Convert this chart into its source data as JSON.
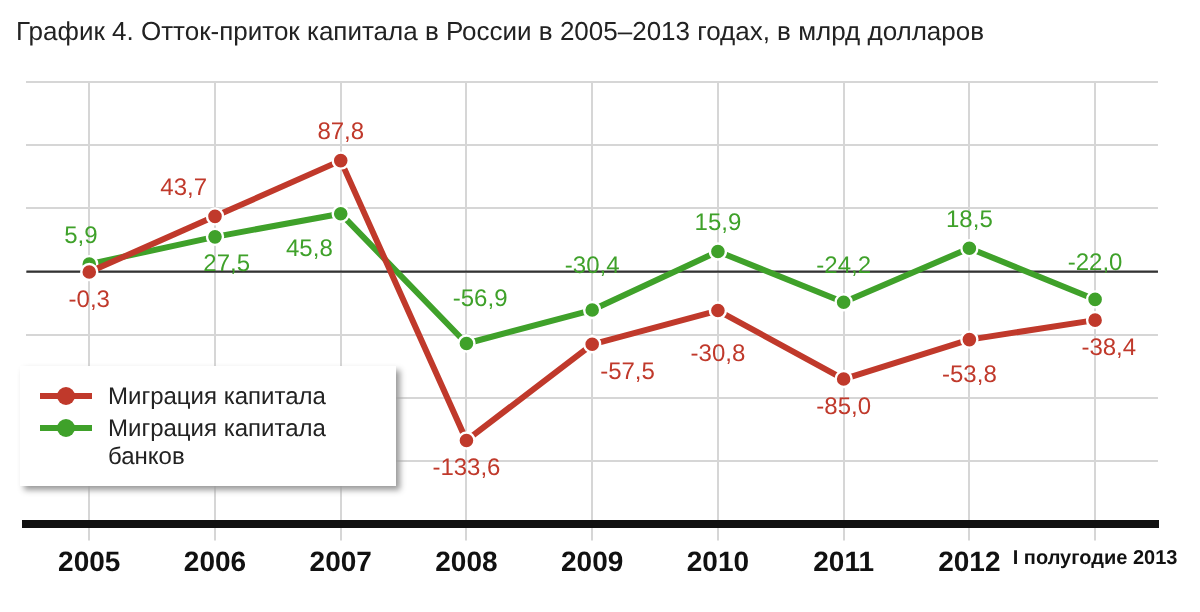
{
  "chart_data": {
    "type": "line",
    "title": "График 4. Отток-приток капитала в России в 2005–2013 годах, в млрд долларов",
    "categories": [
      "2005",
      "2006",
      "2007",
      "2008",
      "2009",
      "2010",
      "2011",
      "2012",
      "I полугодие 2013"
    ],
    "series": [
      {
        "name": "Миграция капитала",
        "color": "#c0392b",
        "values": [
          -0.3,
          43.7,
          87.8,
          -133.6,
          -57.5,
          -30.8,
          -85.0,
          -53.8,
          -38.4
        ],
        "value_labels": [
          "-0,3",
          "43,7",
          "87,8",
          "-133,6",
          "-57,5",
          "-30,8",
          "-85,0",
          "-53,8",
          "-38,4"
        ]
      },
      {
        "name": "Миграция капитала банков",
        "color": "#3fa12a",
        "values": [
          5.9,
          27.5,
          45.8,
          -56.9,
          -30.4,
          15.9,
          -24.2,
          18.5,
          -22.0
        ],
        "value_labels": [
          "5,9",
          "27,5",
          "45,8",
          "-56,9",
          "-30,4",
          "15,9",
          "-24,2",
          "18,5",
          "-22,0"
        ]
      }
    ],
    "ref_lines": [
      {
        "axis": "y",
        "value": 0,
        "color": "#333333"
      }
    ],
    "grid": true,
    "legend": "bottom left",
    "marker": "circle",
    "line_style": "solid",
    "tick_labels": "x"
  }
}
